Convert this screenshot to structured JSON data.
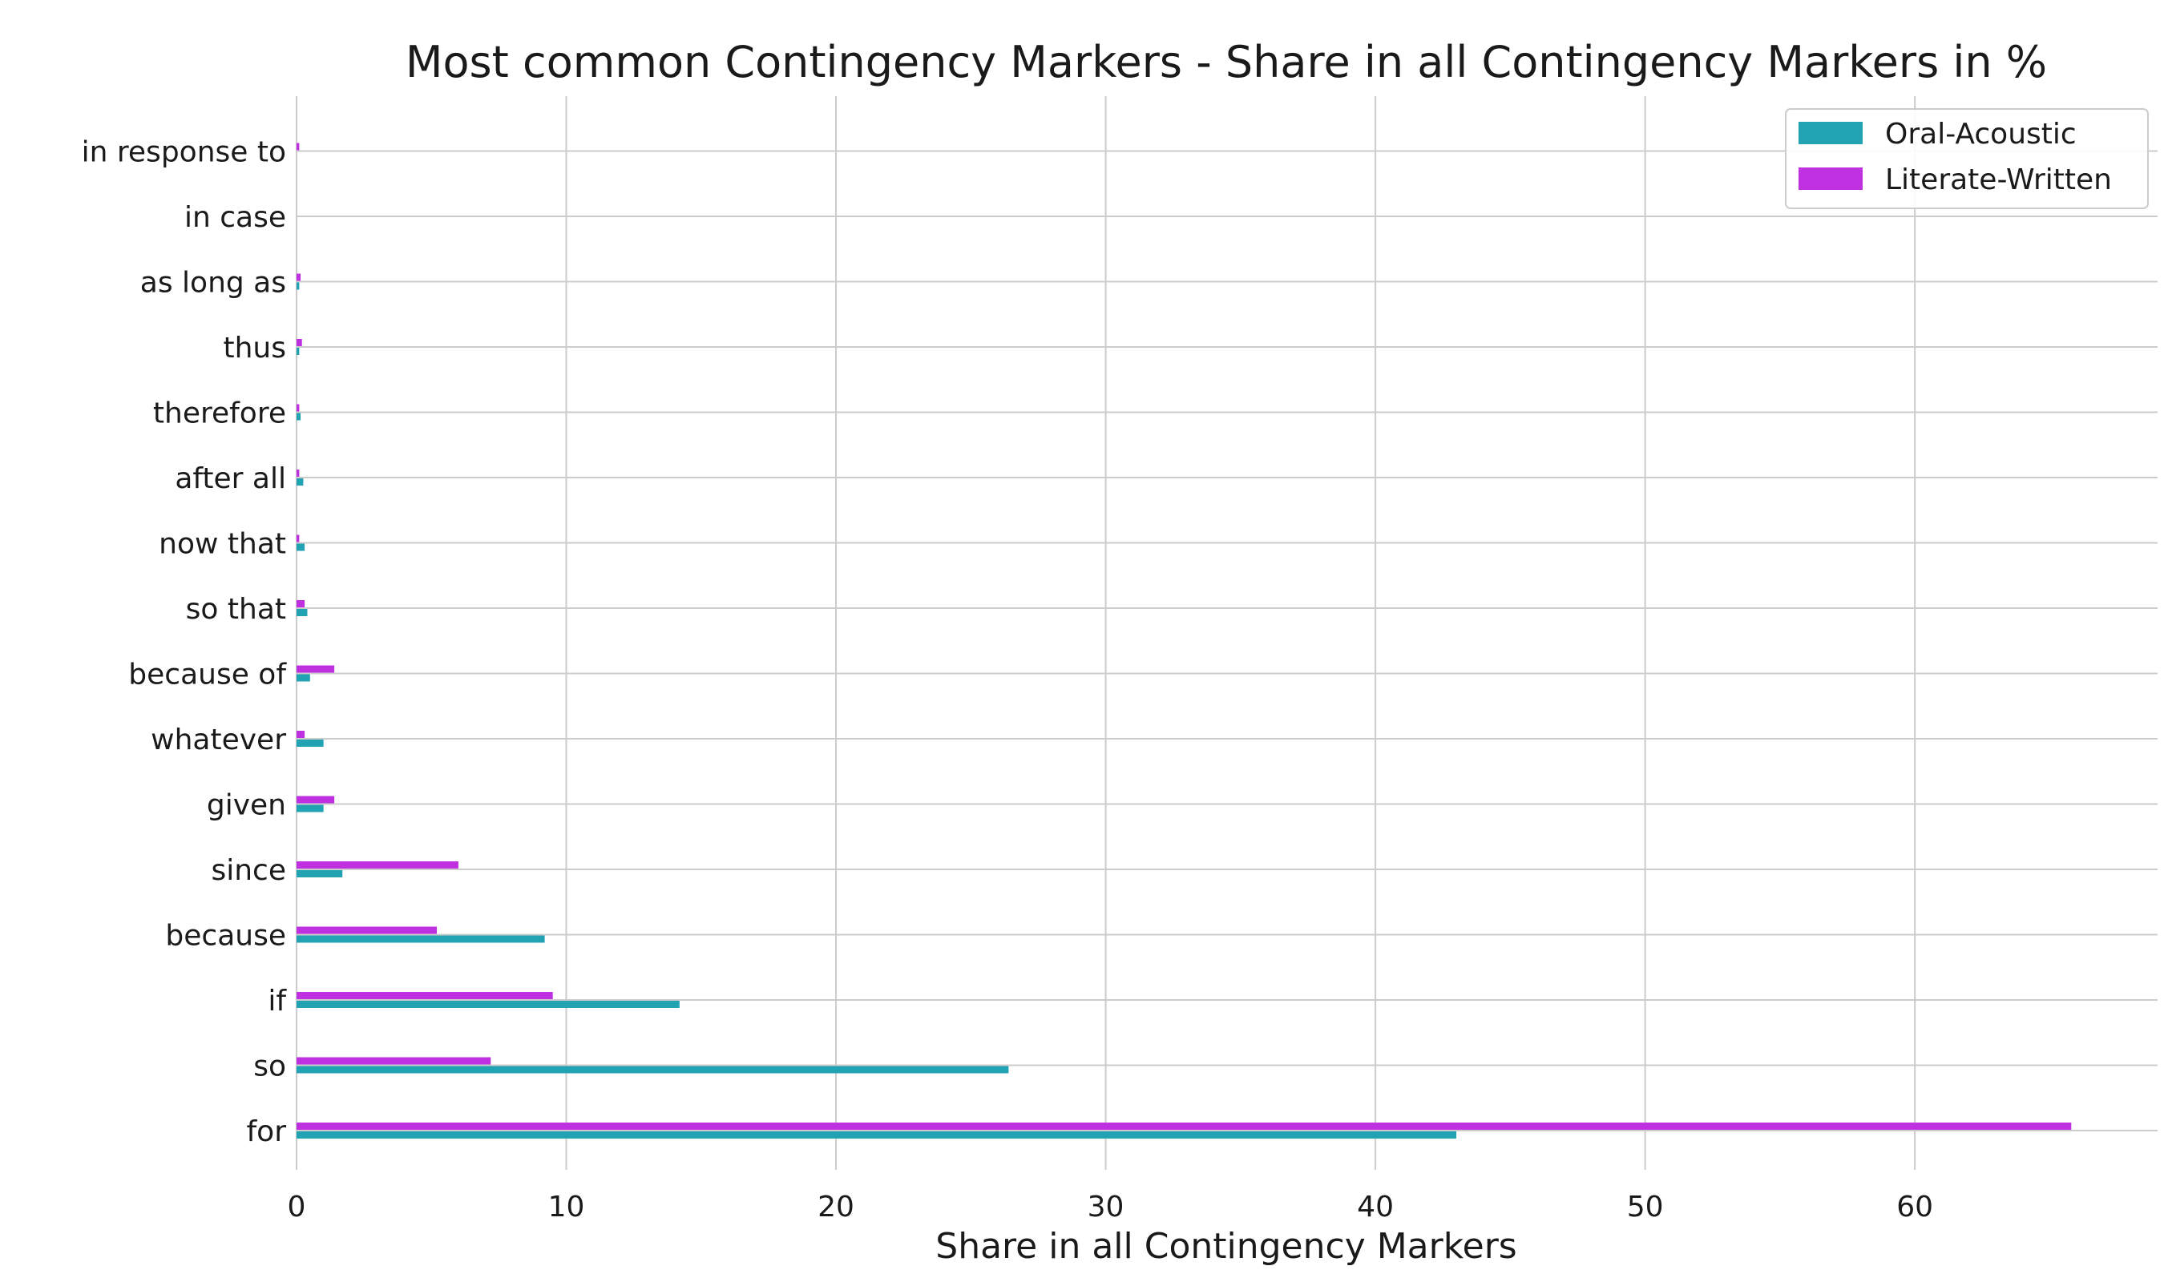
{
  "chart_data": {
    "type": "bar",
    "orientation": "horizontal",
    "title": "Most common Contingency Markers - Share in all Contingency Markers in %",
    "xlabel": "Share in all Contingency Markers",
    "ylabel": "",
    "xlim": [
      0,
      69
    ],
    "xticks": [
      0,
      10,
      20,
      30,
      40,
      50,
      60
    ],
    "grid": true,
    "legend_position": "top-right",
    "categories": [
      "for",
      "so",
      "if",
      "because",
      "since",
      "given",
      "whatever",
      "because of",
      "so that",
      "now that",
      "after all",
      "therefore",
      "thus",
      "as long as",
      "in case",
      "in response to"
    ],
    "series": [
      {
        "name": "Oral-Acoustic",
        "color": "#22a3b3",
        "values": [
          43.0,
          26.4,
          14.2,
          9.2,
          1.7,
          1.0,
          1.0,
          0.5,
          0.4,
          0.3,
          0.25,
          0.15,
          0.1,
          0.1,
          0.0,
          0.0
        ]
      },
      {
        "name": "Literate-Written",
        "color": "#bf30e0",
        "values": [
          65.8,
          7.2,
          9.5,
          5.2,
          6.0,
          1.4,
          0.3,
          1.4,
          0.3,
          0.1,
          0.1,
          0.1,
          0.2,
          0.15,
          0.0,
          0.1
        ]
      }
    ]
  }
}
